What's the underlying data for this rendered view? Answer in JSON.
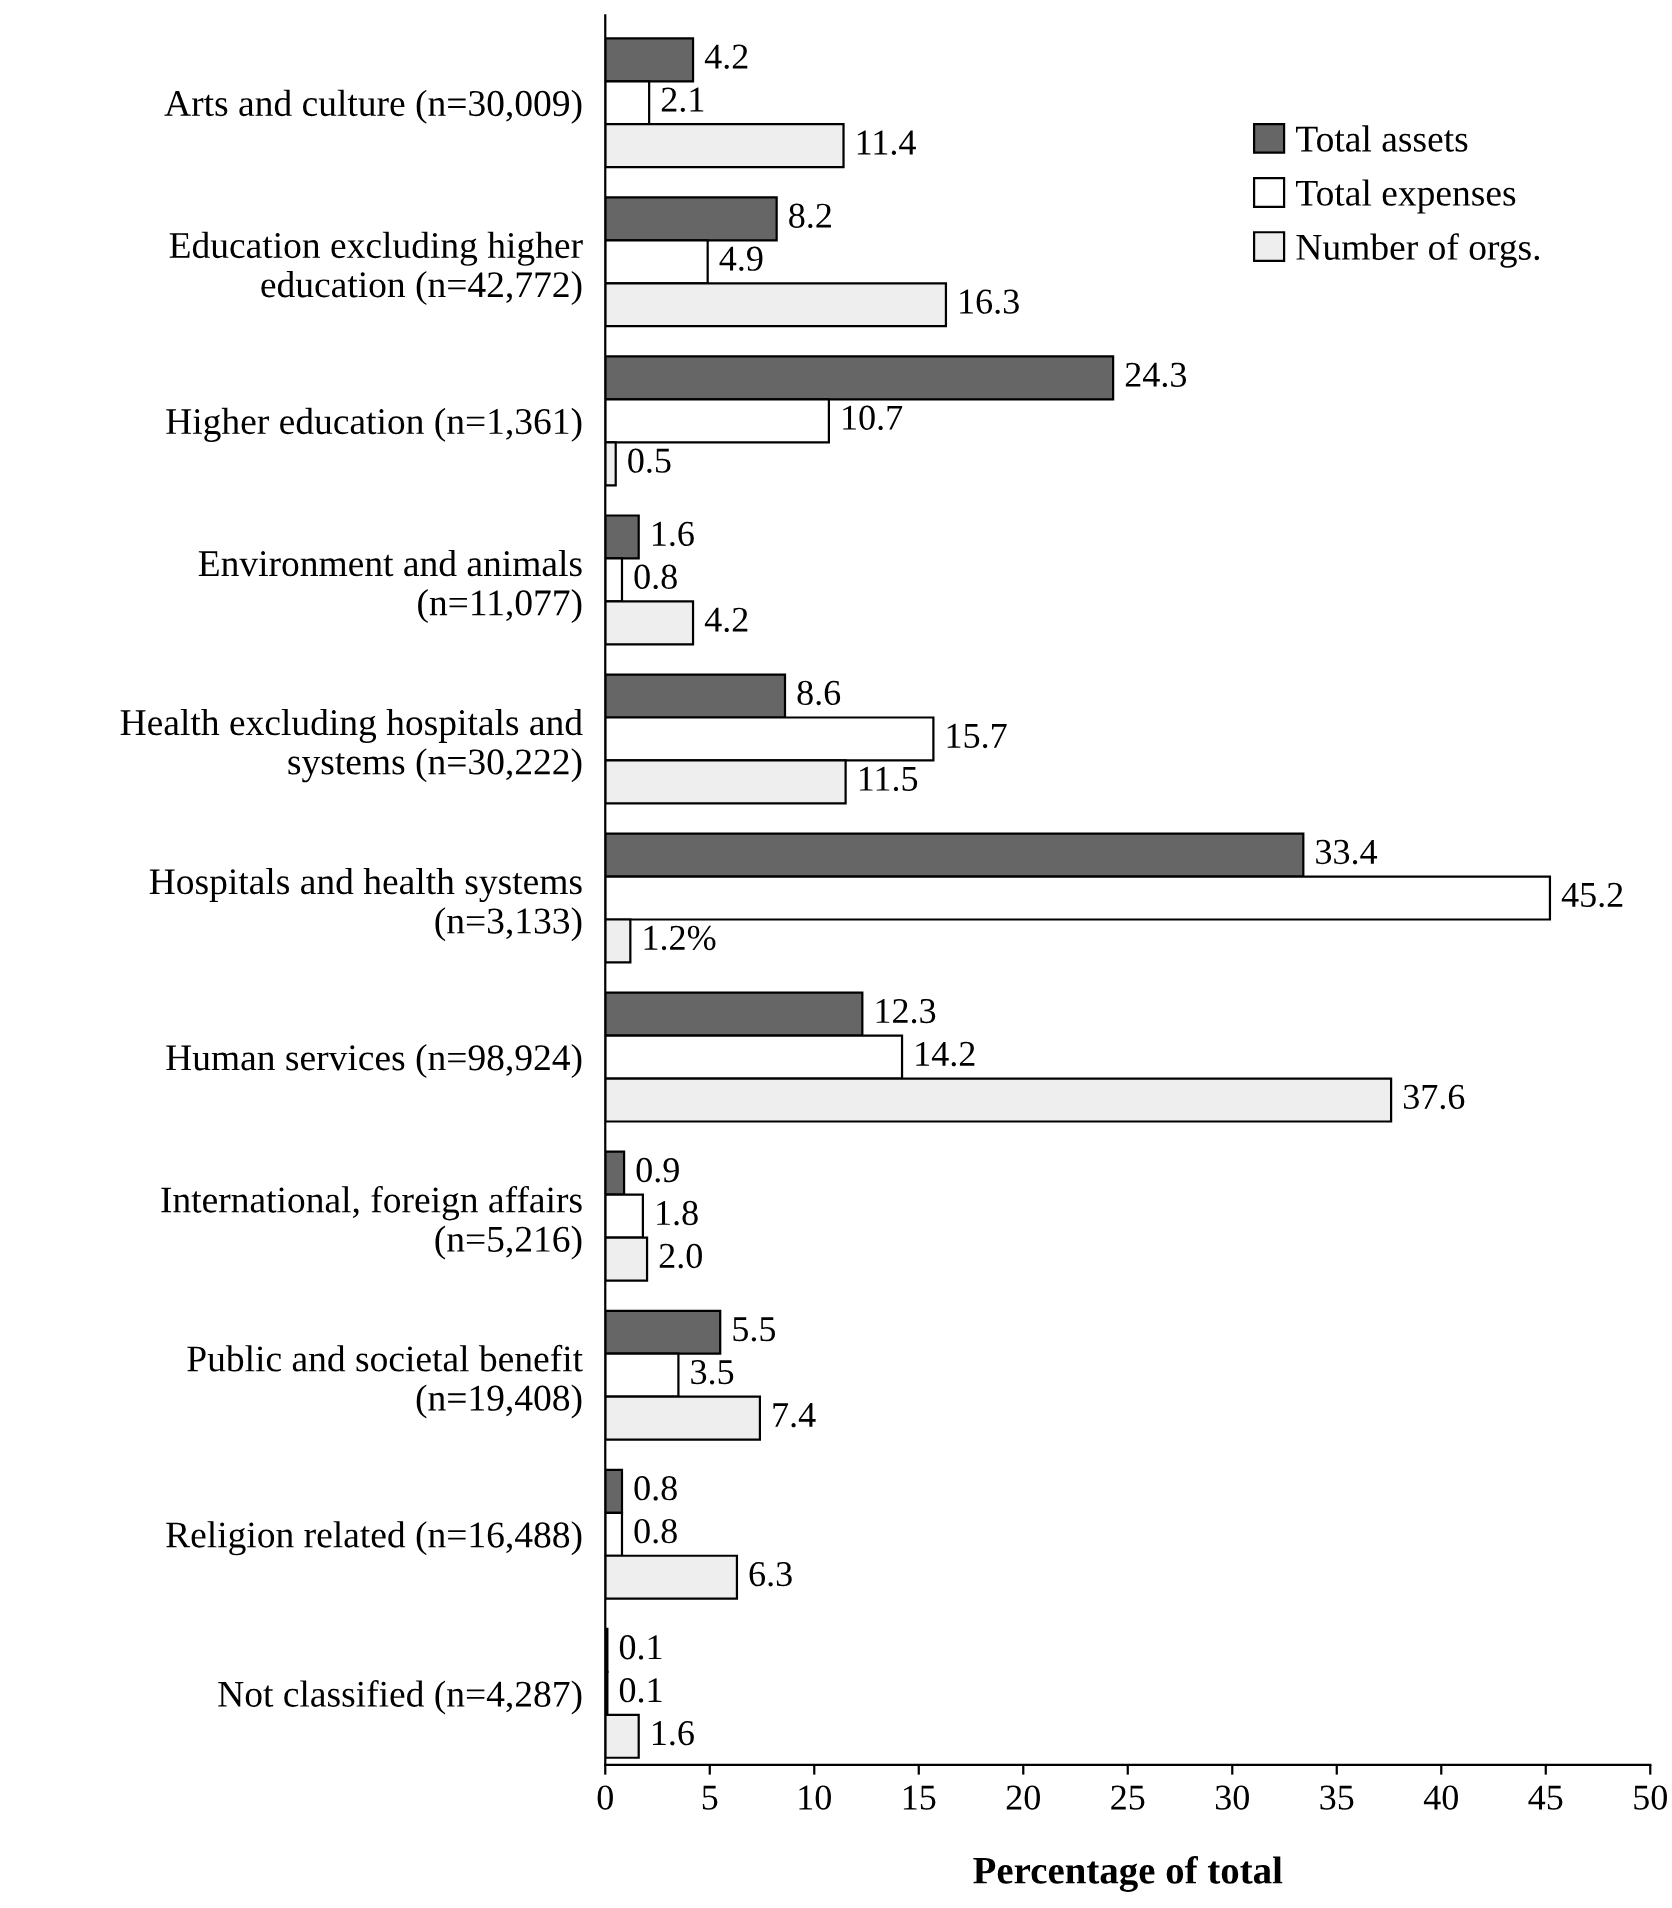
{
  "chart_data": {
    "type": "bar",
    "orientation": "horizontal",
    "xlabel": "Percentage of total",
    "categories": [
      "Arts and culture (n=30,009)",
      "Education excluding higher\neducation (n=42,772)",
      "Higher education (n=1,361)",
      "Environment and animals\n(n=11,077)",
      "Health excluding hospitals and\nsystems (n=30,222)",
      "Hospitals and health systems\n(n=3,133)",
      "Human services (n=98,924)",
      "International, foreign affairs\n(n=5,216)",
      "Public and societal benefit\n(n=19,408)",
      "Religion related (n=16,488)",
      "Not classified (n=4,287)"
    ],
    "series": [
      {
        "name": "Total assets",
        "color": "#666666",
        "values": [
          4.2,
          8.2,
          24.3,
          1.6,
          8.6,
          33.4,
          12.3,
          0.9,
          5.5,
          0.8,
          0.1
        ],
        "value_labels": [
          "4.2",
          "8.2",
          "24.3",
          "1.6",
          "8.6",
          "33.4",
          "12.3",
          "0.9",
          "5.5",
          "0.8",
          "0.1"
        ]
      },
      {
        "name": "Total expenses",
        "color": "#ffffff",
        "values": [
          2.1,
          4.9,
          10.7,
          0.8,
          15.7,
          45.2,
          14.2,
          1.8,
          3.5,
          0.8,
          0.1
        ],
        "value_labels": [
          "2.1",
          "4.9",
          "10.7",
          "0.8",
          "15.7",
          "45.2",
          "14.2",
          "1.8",
          "3.5",
          "0.8",
          "0.1"
        ]
      },
      {
        "name": "Number of orgs.",
        "color": "#eeeeee",
        "values": [
          11.4,
          16.3,
          0.5,
          4.2,
          11.5,
          1.2,
          37.6,
          2.0,
          7.4,
          6.3,
          1.6
        ],
        "value_labels": [
          "11.4",
          "16.3",
          "0.5",
          "4.2",
          "11.5",
          "1.2%",
          "37.6",
          "2.0",
          "7.4",
          "6.3",
          "1.6"
        ]
      }
    ],
    "xlim": [
      0,
      50
    ],
    "xticks": [
      0,
      5,
      10,
      15,
      20,
      25,
      30,
      35,
      40,
      45,
      50
    ],
    "grid": false,
    "legend": "top right"
  }
}
